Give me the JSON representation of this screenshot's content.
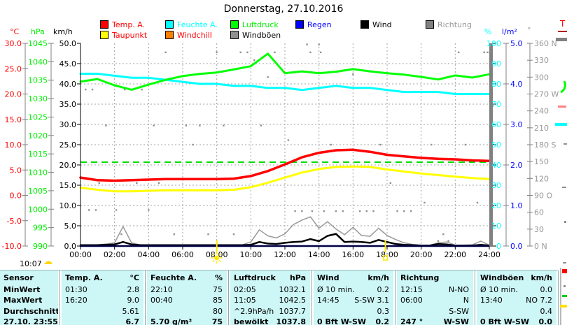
{
  "title": "Donnerstag, 27.10.2016",
  "footer": {
    "time": "10:07",
    "cloud_icon": "☁"
  },
  "cutoff_panel_label": "T",
  "legend": {
    "row1": [
      {
        "label": "Temp. A.",
        "box": "#FF0000",
        "text": "#FF0000"
      },
      {
        "label": "Feuchte A.",
        "box": "#00FFFF",
        "text": "#00FFFF"
      },
      {
        "label": "Luftdruck",
        "box": "#00FF00",
        "text": "#00EE00"
      },
      {
        "label": "Regen",
        "box": "#0000FF",
        "text": "#0000FF"
      },
      {
        "label": "Wind",
        "box": "#000000",
        "text": "#000000"
      },
      {
        "label": "Richtung",
        "box": "#808080",
        "text": "#989898"
      }
    ],
    "row2": [
      {
        "label": "Taupunkt",
        "box": "#FFFF00",
        "text": "#FF0000"
      },
      {
        "label": "Windchill",
        "box": "#FF8000",
        "text": "#FF0000"
      },
      {
        "label": "Windböen",
        "box": "#909090",
        "text": "#000000"
      }
    ]
  },
  "axes": {
    "left": [
      {
        "unit": "°C",
        "color": "#FF0000",
        "ticks": [
          "30.0",
          "25.0",
          "20.0",
          "15.0",
          "10.0",
          "5.0",
          "0.0",
          "-5.0",
          "-10.0"
        ]
      },
      {
        "unit": "hPa",
        "color": "#00EE00",
        "ticks": [
          "1045",
          "1040",
          "1035",
          "1030",
          "1025",
          "1020",
          "1015",
          "1010",
          "1005",
          "1000",
          "995",
          "990"
        ]
      },
      {
        "unit": "km/h",
        "color": "#000000",
        "ticks": [
          "50.0",
          "45.0",
          "40.0",
          "35.0",
          "30.0",
          "25.0",
          "20.0",
          "15.0",
          "10.0",
          "5.0",
          "0.0"
        ]
      }
    ],
    "right": [
      {
        "unit": "%",
        "color": "#00FFFF",
        "ticks": [
          "100",
          "90",
          "80",
          "70",
          "60",
          "50",
          "40",
          "30",
          "20",
          "10",
          "0"
        ]
      },
      {
        "unit": "l/m²",
        "color": "#0000FF",
        "ticks": [
          "5.0",
          "4.0",
          "3.0",
          "2.0",
          "1.0",
          "0.0"
        ]
      },
      {
        "unit": "°",
        "color": "#989898",
        "ticks": [
          "360 N",
          "330",
          "300",
          "270 W",
          "240",
          "210",
          "180 S",
          "150",
          "120",
          "90 O",
          "60",
          "30",
          "0 N"
        ]
      }
    ],
    "x_ticks": [
      "00:00",
      "02:00",
      "04:00",
      "06:00",
      "08:00",
      "10:00",
      "12:00",
      "14:00",
      "16:00",
      "18:00",
      "20:00",
      "22:00",
      "24:00"
    ]
  },
  "sun_markers": {
    "sunrise_hour": 8.0,
    "sunset_hour": 17.9,
    "color": "#FFE800"
  },
  "chart_data": {
    "type": "line",
    "title": "Donnerstag, 27.10.2016",
    "x_unit": "hour",
    "x_range": [
      0,
      24
    ],
    "axis_ranges": {
      "temp_c": [
        -10,
        30
      ],
      "pressure_hpa": [
        990,
        1045
      ],
      "wind_kmh": [
        0,
        50
      ],
      "humidity_pct": [
        0,
        100
      ],
      "rain_lm2": [
        0,
        5
      ],
      "direction_deg": [
        0,
        360
      ]
    },
    "grid": "dashed",
    "reference_line": {
      "color": "#00DD00",
      "style": "dashed",
      "axis": "wind",
      "kmh_value": 20.7
    },
    "series": [
      {
        "name": "Richtung",
        "unit": "°",
        "color": "#909090",
        "axis": "dir",
        "style": "dots",
        "points": [
          [
            0.3,
            278
          ],
          [
            0.7,
            278
          ],
          [
            1.1,
            112
          ],
          [
            0.5,
            64
          ],
          [
            0.9,
            64
          ],
          [
            1.5,
            214
          ],
          [
            2.1,
            64
          ],
          [
            2.4,
            21
          ],
          [
            2.6,
            278
          ],
          [
            3.0,
            278
          ],
          [
            3.3,
            112
          ],
          [
            3.6,
            278
          ],
          [
            4.0,
            64
          ],
          [
            4.3,
            214
          ],
          [
            4.6,
            112
          ],
          [
            5.0,
            344
          ],
          [
            5.5,
            21
          ],
          [
            6.2,
            214
          ],
          [
            6.6,
            180
          ],
          [
            7.0,
            214
          ],
          [
            7.5,
            21
          ],
          [
            8.0,
            344
          ],
          [
            8.4,
            214
          ],
          [
            9.0,
            21
          ],
          [
            9.4,
            344
          ],
          [
            9.8,
            344
          ],
          [
            10.2,
            330
          ],
          [
            10.6,
            214
          ],
          [
            11.0,
            300
          ],
          [
            11.4,
            344
          ],
          [
            12.2,
            188
          ],
          [
            12.6,
            62
          ],
          [
            13.0,
            62
          ],
          [
            13.3,
            358
          ],
          [
            13.5,
            344
          ],
          [
            13.6,
            62
          ],
          [
            14.0,
            358
          ],
          [
            14.1,
            344
          ],
          [
            14.3,
            62
          ],
          [
            14.7,
            180
          ],
          [
            15.0,
            62
          ],
          [
            15.4,
            62
          ],
          [
            16.0,
            305
          ],
          [
            16.4,
            62
          ],
          [
            16.8,
            62
          ],
          [
            17.2,
            62
          ],
          [
            17.6,
            180
          ],
          [
            18.2,
            112
          ],
          [
            18.6,
            62
          ],
          [
            19.0,
            62
          ],
          [
            19.4,
            62
          ],
          [
            20.2,
            77
          ],
          [
            20.6,
            180
          ],
          [
            21.0,
            9
          ],
          [
            21.3,
            21
          ],
          [
            21.6,
            9
          ],
          [
            22.2,
            344
          ],
          [
            22.6,
            180
          ],
          [
            23.3,
            77
          ],
          [
            23.7,
            344
          ],
          [
            23.9,
            344
          ]
        ]
      },
      {
        "name": "Windböen",
        "unit": "km/h",
        "color": "#999999",
        "axis": "wind",
        "step_hours": 0.5,
        "values": [
          0.3,
          0.3,
          0.3,
          0.5,
          0.8,
          4.8,
          0.8,
          0.3,
          0.3,
          0.3,
          0.3,
          0.3,
          0.3,
          0.3,
          0.3,
          0.3,
          0.3,
          0.3,
          0.3,
          0.3,
          1.0,
          4.0,
          2.5,
          2.0,
          3.0,
          5.3,
          6.4,
          7.2,
          4.4,
          6.0,
          4.2,
          2.8,
          4.6,
          2.6,
          2.4,
          4.4,
          2.6,
          1.6,
          0.8,
          0.4,
          0.2,
          0.2,
          0.8,
          1.0,
          0.2,
          0.2,
          0.3,
          1.2,
          0.2
        ]
      },
      {
        "name": "Wind",
        "unit": "km/h",
        "color": "#000000",
        "axis": "wind",
        "step_hours": 0.5,
        "values": [
          0.2,
          0.2,
          0.2,
          0.3,
          0.4,
          1.0,
          0.4,
          0.2,
          0.2,
          0.2,
          0.2,
          0.2,
          0.2,
          0.2,
          0.2,
          0.2,
          0.2,
          0.2,
          0.2,
          0.2,
          0.3,
          1.0,
          0.6,
          0.5,
          0.8,
          1.0,
          1.1,
          1.7,
          1.2,
          2.5,
          3.0,
          1.0,
          1.1,
          1.0,
          0.8,
          1.5,
          1.0,
          0.5,
          0.3,
          0.2,
          0.1,
          0.1,
          0.5,
          0.4,
          0.1,
          0.1,
          0.1,
          0.3,
          0.1
        ]
      },
      {
        "name": "Regen",
        "unit": "l/m²",
        "color": "#000080",
        "axis": "rain",
        "step_hours": 12,
        "values": [
          0,
          0,
          0
        ]
      },
      {
        "name": "Feuchte A.",
        "unit": "%",
        "color": "#00FFFF",
        "axis": "humidity",
        "step_hours": 1,
        "values": [
          85,
          85,
          84,
          83,
          83,
          82,
          81,
          80,
          80,
          79,
          79,
          78,
          78,
          77,
          78,
          79,
          78,
          78,
          77,
          76,
          76,
          76,
          75,
          75,
          75
        ]
      },
      {
        "name": "Luftdruck",
        "unit": "hPa",
        "color": "#00FF00",
        "axis": "pressure",
        "step_hours": 1,
        "values": [
          1034.6,
          1035.3,
          1033.6,
          1032.4,
          1033.8,
          1035.1,
          1036.1,
          1036.7,
          1037.1,
          1037.9,
          1038.8,
          1042.2,
          1036.9,
          1037.4,
          1036.9,
          1037.3,
          1038.0,
          1037.4,
          1036.9,
          1036.5,
          1035.9,
          1035.2,
          1036.3,
          1035.7,
          1036.6
        ]
      },
      {
        "name": "Taupunkt",
        "unit": "°C",
        "color": "#FFFF00",
        "axis": "temp",
        "step_hours": 1,
        "values": [
          1.5,
          1.1,
          0.8,
          0.8,
          0.9,
          1.0,
          1.0,
          1.0,
          1.0,
          1.1,
          1.6,
          2.5,
          3.5,
          4.5,
          5.2,
          5.6,
          5.7,
          5.6,
          5.1,
          4.7,
          4.3,
          4.0,
          3.7,
          3.4,
          3.2
        ]
      },
      {
        "name": "Temp. A.",
        "unit": "°C",
        "color": "#FF0000",
        "axis": "temp",
        "step_hours": 1,
        "values": [
          3.5,
          3.0,
          2.9,
          3.0,
          3.1,
          3.2,
          3.2,
          3.2,
          3.2,
          3.3,
          3.8,
          4.8,
          6.1,
          7.5,
          8.4,
          8.9,
          9.0,
          8.6,
          8.0,
          7.7,
          7.4,
          7.2,
          7.1,
          6.9,
          6.8
        ]
      }
    ]
  },
  "table": {
    "row_headers": [
      "Sensor",
      "MinWert",
      "MaxWert",
      "Durchschnitt",
      "27.10. 23:55"
    ],
    "columns": [
      {
        "label": "Temp. A.",
        "unit": "°C",
        "rows": [
          [
            "01:30",
            "2.8"
          ],
          [
            "16:20",
            "9.0"
          ],
          [
            "",
            "5.61"
          ],
          [
            "",
            "6.7"
          ]
        ]
      },
      {
        "label": "Feuchte A.",
        "unit": "%",
        "rows": [
          [
            "22:10",
            "75"
          ],
          [
            "00:40",
            "85"
          ],
          [
            "",
            "80"
          ],
          [
            "5.70 g/m³",
            "75"
          ]
        ]
      },
      {
        "label": "Luftdruck",
        "unit": "hPa",
        "rows": [
          [
            "02:05",
            "1032.1"
          ],
          [
            "11:05",
            "1042.5"
          ],
          [
            "^2.9hPa/h",
            "1037.7"
          ],
          [
            "bewölkt",
            "1037.8"
          ]
        ]
      },
      {
        "label": "Wind",
        "unit": "km/h",
        "rows": [
          [
            "Ø 10 min.",
            "0.2"
          ],
          [
            "14:45",
            "S-SW 3.1"
          ],
          [
            "",
            "0.3"
          ],
          [
            "0 Bft W-SW",
            "0.2"
          ]
        ]
      },
      {
        "label": "Richtung",
        "unit": "",
        "rows": [
          [
            "12:15",
            "N-NO"
          ],
          [
            "06:00",
            "N"
          ],
          [
            "",
            "S-SW"
          ],
          [
            "247 °",
            "W-SW"
          ]
        ]
      },
      {
        "label": "Windböen",
        "unit": "km/h",
        "rows": [
          [
            "Ø 10 min.",
            "0.0"
          ],
          [
            "13:40",
            "NO 7.2"
          ],
          [
            "",
            "0.4"
          ],
          [
            "0 Bft W-SW",
            "0.0"
          ]
        ]
      }
    ]
  },
  "colors": {
    "table_bg": "#CDF6F6",
    "grid": "#A0A0A0",
    "plot_right_border": "#808080",
    "rain_baseline": "#000080"
  }
}
